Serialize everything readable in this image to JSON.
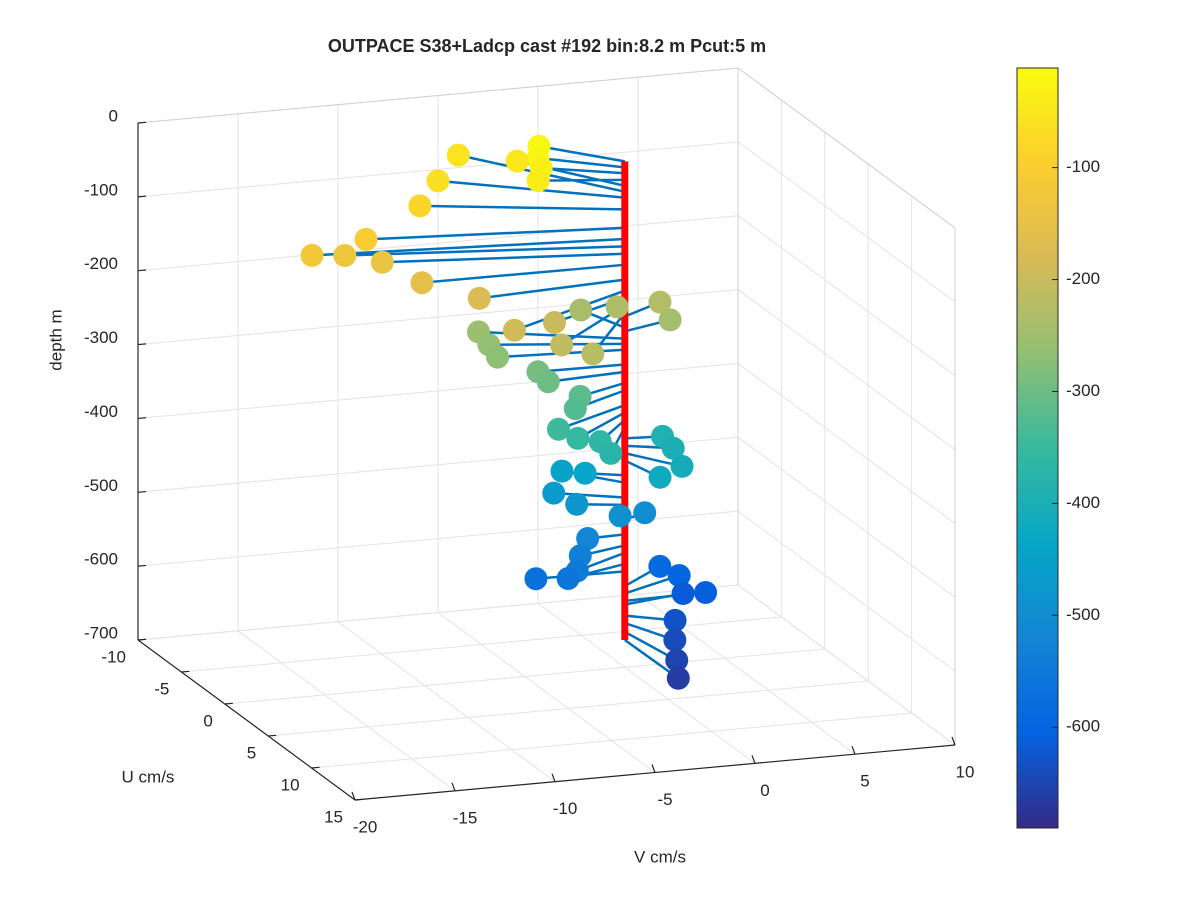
{
  "chart_data": {
    "type": "scatter3d",
    "title": "OUTPACE S38+Ladcp cast #192 bin:8.2 m  Pcut:5 m",
    "xlabel": "U cm/s",
    "ylabel": "V cm/s",
    "zlabel": "depth m",
    "xlim": [
      -10,
      15
    ],
    "xticks": [
      -10,
      -5,
      0,
      5,
      10,
      15
    ],
    "ylim": [
      -20,
      10
    ],
    "yticks": [
      -20,
      -15,
      -10,
      -5,
      0,
      5,
      10
    ],
    "zlim": [
      -700,
      0
    ],
    "zticks": [
      -700,
      -600,
      -500,
      -400,
      -300,
      -200,
      -100,
      0
    ],
    "clim": [
      -690,
      -11
    ],
    "cticks": [
      -600,
      -500,
      -400,
      -300,
      -200,
      -100
    ],
    "colormap": [
      "#352a87",
      "#0363e1",
      "#1485d4",
      "#06a7c6",
      "#38b99e",
      "#92bf73",
      "#d9ba56",
      "#fcce2e",
      "#f9fb0e"
    ],
    "stem_color": "#0072bd",
    "profile_color": "#ff0000",
    "grid": true,
    "u": [
      -3.2,
      -2.4,
      -1.8,
      -1.0,
      -4.8,
      -7.2,
      -4.7,
      -3.1,
      -1.7,
      -1.7,
      -2.3,
      -1.9,
      -0.1,
      0.75,
      4.1,
      2.5,
      4.7,
      5.3,
      -1.55,
      -1.95,
      -3.0,
      -1.0,
      -2.8,
      -1.6,
      -0.6,
      -0.1,
      0.4,
      1.3,
      1.9,
      2.5,
      3.0,
      2.7,
      3.45,
      0.2,
      0.97,
      2.56,
      2.77,
      -0.8,
      -2.4,
      -1.5,
      -0.7,
      0.45,
      -0.7,
      0.1,
      0.86,
      1.9,
      1.3,
      -0.1,
      -2.3,
      -1.8,
      -0.14,
      -0.8,
      1.3,
      3.0,
      4.6,
      6.0
    ],
    "v": [
      -2.9,
      -3.3,
      -3.4,
      -3.9,
      -3.3,
      -5.2,
      -7.3,
      -8.9,
      -12.2,
      -14.9,
      -13.0,
      -11.3,
      -10.1,
      -7.6,
      -7.3,
      -4.6,
      -5.2,
      -3.9,
      2.43,
      0.46,
      -0.9,
      2.7,
      -6.1,
      -6.1,
      -6.1,
      -4.3,
      -4.0,
      -2.8,
      -3.3,
      -4.4,
      -3.65,
      -2.4,
      -2.2,
      1.8,
      2.0,
      1.75,
      0.56,
      -1.64,
      -2.1,
      -2.9,
      -2.1,
      -0.43,
      1.3,
      -1.9,
      -2.6,
      -3.2,
      -3.4,
      -4.4,
      2.75,
      3.5,
      4.1,
      3.26,
      1.95,
      1.2,
      0.6,
      0.07
    ],
    "depth": [
      -15,
      -23,
      -31,
      -40,
      -48,
      -56,
      -64,
      -80,
      -105,
      -120,
      -130,
      -140,
      -155,
      -175,
      -190,
      -200,
      -210,
      -220,
      -225,
      -230,
      -240,
      -245,
      -255,
      -262,
      -270,
      -290,
      -300,
      -315,
      -325,
      -345,
      -355,
      -365,
      -375,
      -390,
      -400,
      -410,
      -420,
      -440,
      -450,
      -470,
      -480,
      -490,
      -500,
      -520,
      -535,
      -545,
      -560,
      -570,
      -590,
      -600,
      -610,
      -615,
      -630,
      -640,
      -652,
      -663
    ]
  }
}
